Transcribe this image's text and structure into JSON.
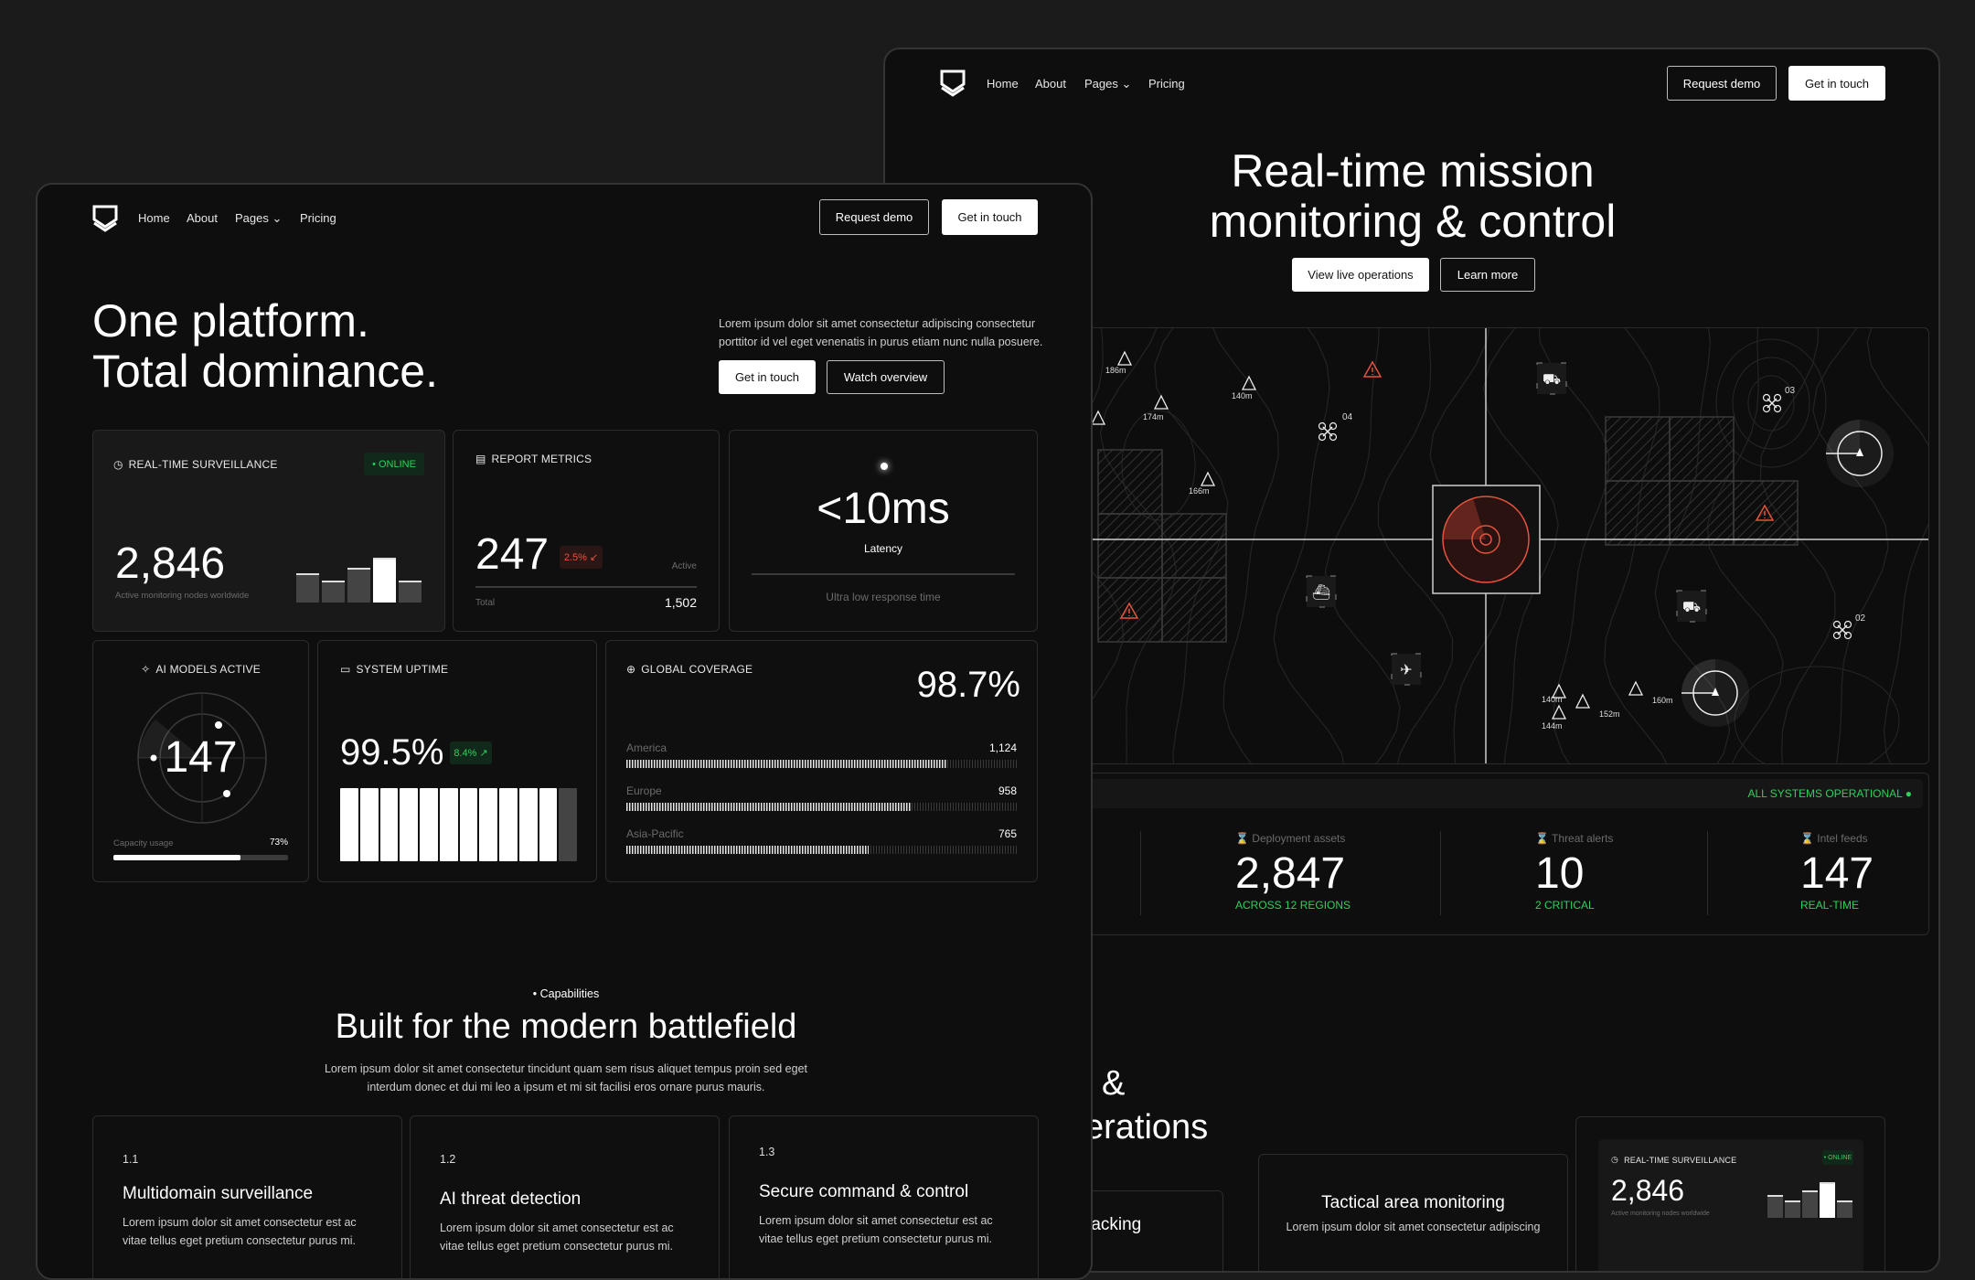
{
  "colors": {
    "accent_green": "#2fd05c",
    "alert_red": "#e5533d",
    "background": "#0e0e0e"
  },
  "back": {
    "nav": {
      "logo_icon": "shield-logo-icon",
      "home": "Home",
      "about": "About",
      "pages": "Pages",
      "pricing": "Pricing",
      "request_demo": "Request demo",
      "get_in_touch": "Get in touch"
    },
    "hero": {
      "title_line1": "Real-time mission",
      "title_line2": "monitoring & control",
      "primary_cta": "View live operations",
      "secondary_cta": "Learn more"
    },
    "map": {
      "elevations": [
        "186m",
        "140m",
        "174m",
        "",
        "166m",
        "140m",
        "152m",
        "144m",
        "160m"
      ],
      "drones": [
        "04",
        "03",
        "02"
      ],
      "units": [
        "tank-icon",
        "ship-icon",
        "tank-icon",
        "jet-icon"
      ]
    },
    "status": {
      "text": "ALL SYSTEMS OPERATIONAL"
    },
    "stats": [
      {
        "label": "Deployment assets",
        "value": "2,847",
        "sub": "ACROSS 12 REGIONS"
      },
      {
        "label": "Threat alerts",
        "value": "10",
        "sub": "2 CRITICAL"
      },
      {
        "label": "Intel feeds",
        "value": "147",
        "sub": "REAL-TIME"
      }
    ],
    "section": {
      "title_frag1": "l &",
      "title_frag2": "erations"
    },
    "cards": [
      {
        "title_frag": "racking"
      },
      {
        "title": "Tactical area monitoring",
        "text": "Lorem ipsum dolor sit amet consectetur adipiscing"
      }
    ],
    "mini": {
      "label": "REAL-TIME SURVEILLANCE",
      "badge": "• ONLINE",
      "value": "2,846",
      "sub": "Active monitoring nodes worldwide"
    }
  },
  "front": {
    "nav": {
      "home": "Home",
      "about": "About",
      "pages": "Pages",
      "pricing": "Pricing",
      "request_demo": "Request demo",
      "get_in_touch": "Get in touch"
    },
    "hero": {
      "line1": "One platform.",
      "line2": "Total dominance.",
      "text": "Lorem ipsum dolor sit amet consectetur adipiscing consectetur porttitor id vel eget venenatis in purus etiam nunc nulla posuere.",
      "primary_cta": "Get in touch",
      "secondary_cta": "Watch overview"
    },
    "surveillance": {
      "label": "REAL-TIME SURVEILLANCE",
      "badge": "• ONLINE",
      "value": "2,846",
      "sub": "Active monitoring nodes worldwide",
      "bars": [
        0.55,
        0.42,
        0.65,
        0.85,
        0.42
      ],
      "highlight_bar": 3
    },
    "report": {
      "label": "REPORT METRICS",
      "value": "247",
      "badge": "2.5% ↙",
      "active": "Active",
      "total_label": "Total",
      "total": "1,502"
    },
    "latency": {
      "value": "<10ms",
      "label": "Latency",
      "sub": "Ultra low response time"
    },
    "ai": {
      "label": "AI MODELS ACTIVE",
      "value": "147",
      "capacity_label": "Capacity usage",
      "capacity": "73%",
      "capacity_fraction": 0.73
    },
    "uptime": {
      "label": "SYSTEM UPTIME",
      "value": "99.5%",
      "badge": "8.4% ↗",
      "segments_total": 12,
      "segments_filled": 11
    },
    "coverage": {
      "label": "GLOBAL COVERAGE",
      "value": "98.7%",
      "regions": [
        {
          "name": "America",
          "value": "1,124",
          "fill": 0.82
        },
        {
          "name": "Europe",
          "value": "958",
          "fill": 0.73
        },
        {
          "name": "Asia-Pacific",
          "value": "765",
          "fill": 0.62
        }
      ]
    },
    "capabilities": {
      "tag": "Capabilities",
      "title": "Built for the modern battlefield",
      "text1": "Lorem ipsum dolor sit amet consectetur tincidunt quam sem risus aliquet tempus proin sed eget",
      "text2": "interdum donec et dui mi leo a ipsum et mi sit facilisi eros ornare purus mauris."
    },
    "features": [
      {
        "num": "1.1",
        "title": "Multidomain surveillance",
        "text1": "Lorem ipsum dolor sit amet consectetur est ac",
        "text2": "vitae tellus eget pretium consectetur purus mi."
      },
      {
        "num": "1.2",
        "title": "AI threat detection",
        "text1": "Lorem ipsum dolor sit amet consectetur est ac",
        "text2": "vitae tellus eget pretium consectetur purus mi."
      },
      {
        "num": "1.3",
        "title": "Secure command & control",
        "text1": "Lorem ipsum dolor sit amet consectetur est ac",
        "text2": "vitae tellus eget pretium consectetur purus mi."
      }
    ]
  }
}
